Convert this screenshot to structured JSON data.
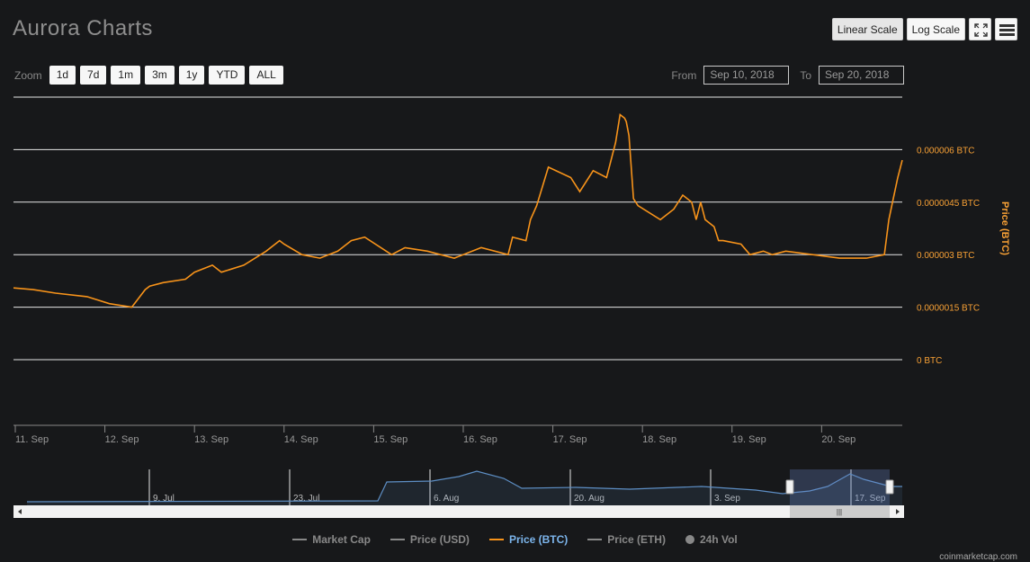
{
  "title": "Aurora Charts",
  "toolbar": {
    "linear_label": "Linear Scale",
    "log_label": "Log Scale",
    "fullscreen_icon": "expand-icon",
    "menu_icon": "hamburger-menu-icon"
  },
  "zoom": {
    "label": "Zoom",
    "buttons": [
      "1d",
      "7d",
      "1m",
      "3m",
      "1y",
      "YTD",
      "ALL"
    ]
  },
  "range": {
    "from_label": "From",
    "from_value": "Sep 10, 2018",
    "to_label": "To",
    "to_value": "Sep 20, 2018"
  },
  "legend": {
    "items": [
      {
        "label": "Market Cap",
        "active": false
      },
      {
        "label": "Price (USD)",
        "active": false
      },
      {
        "label": "Price (BTC)",
        "active": true
      },
      {
        "label": "Price (ETH)",
        "active": false
      },
      {
        "label": "24h Vol",
        "active": false
      }
    ]
  },
  "credit": "coinmarketcap.com",
  "colors": {
    "btc_line": "#f7931a",
    "btc_label": "#f7a035",
    "active_legend": "#7cb5ec",
    "navigator_line": "#5d8ec4"
  },
  "chart_data": {
    "type": "line",
    "ylabel": "Price (BTC)",
    "ylim": [
      0,
      7.5e-06
    ],
    "yticks": [
      {
        "value": 0,
        "label": "0 BTC"
      },
      {
        "value": 1.5e-06,
        "label": "0.0000015 BTC"
      },
      {
        "value": 3e-06,
        "label": "0.000003 BTC"
      },
      {
        "value": 4.5e-06,
        "label": "0.0000045 BTC"
      },
      {
        "value": 6e-06,
        "label": "0.000006 BTC"
      }
    ],
    "xlim": [
      10.98,
      20.9
    ],
    "xticks": [
      {
        "value": 11,
        "label": "11. Sep"
      },
      {
        "value": 12,
        "label": "12. Sep"
      },
      {
        "value": 13,
        "label": "13. Sep"
      },
      {
        "value": 14,
        "label": "14. Sep"
      },
      {
        "value": 15,
        "label": "15. Sep"
      },
      {
        "value": 16,
        "label": "16. Sep"
      },
      {
        "value": 17,
        "label": "17. Sep"
      },
      {
        "value": 18,
        "label": "18. Sep"
      },
      {
        "value": 19,
        "label": "19. Sep"
      },
      {
        "value": 20,
        "label": "20. Sep"
      }
    ],
    "series": [
      {
        "name": "Price (BTC)",
        "x": [
          10.98,
          11.2,
          11.45,
          11.8,
          12.05,
          12.3,
          12.45,
          12.5,
          12.65,
          12.9,
          13.0,
          13.2,
          13.3,
          13.55,
          13.8,
          13.95,
          14.0,
          14.2,
          14.4,
          14.6,
          14.75,
          14.9,
          15.2,
          15.35,
          15.6,
          15.9,
          16.2,
          16.5,
          16.55,
          16.7,
          16.75,
          16.82,
          16.95,
          17.2,
          17.3,
          17.45,
          17.6,
          17.7,
          17.75,
          17.8,
          17.82,
          17.85,
          17.9,
          17.95,
          18.2,
          18.35,
          18.45,
          18.55,
          18.6,
          18.65,
          18.7,
          18.8,
          18.85,
          18.9,
          19.1,
          19.2,
          19.35,
          19.45,
          19.6,
          19.9,
          20.2,
          20.5,
          20.7,
          20.75,
          20.8,
          20.85,
          20.9
        ],
        "y": [
          2.05e-06,
          2e-06,
          1.9e-06,
          1.8e-06,
          1.6e-06,
          1.5e-06,
          2e-06,
          2.1e-06,
          2.2e-06,
          2.3e-06,
          2.5e-06,
          2.7e-06,
          2.5e-06,
          2.7e-06,
          3.1e-06,
          3.4e-06,
          3.3e-06,
          3e-06,
          2.9e-06,
          3.1e-06,
          3.4e-06,
          3.5e-06,
          3e-06,
          3.2e-06,
          3.1e-06,
          2.9e-06,
          3.2e-06,
          3e-06,
          3.5e-06,
          3.4e-06,
          4e-06,
          4.4e-06,
          5.5e-06,
          5.2e-06,
          4.8e-06,
          5.4e-06,
          5.2e-06,
          6.2e-06,
          7e-06,
          6.9e-06,
          6.8e-06,
          6.4e-06,
          4.6e-06,
          4.4e-06,
          4e-06,
          4.3e-06,
          4.7e-06,
          4.5e-06,
          4e-06,
          4.5e-06,
          4e-06,
          3.8e-06,
          3.4e-06,
          3.4e-06,
          3.3e-06,
          3e-06,
          3.1e-06,
          3e-06,
          3.1e-06,
          3e-06,
          2.9e-06,
          2.9e-06,
          3e-06,
          4e-06,
          4.6e-06,
          5.2e-06,
          5.7e-06
        ]
      }
    ]
  },
  "navigator": {
    "labels": [
      "9. Jul",
      "23. Jul",
      "6. Aug",
      "20. Aug",
      "3. Sep",
      "17. Sep"
    ],
    "scrollbar_grip": "|||"
  }
}
